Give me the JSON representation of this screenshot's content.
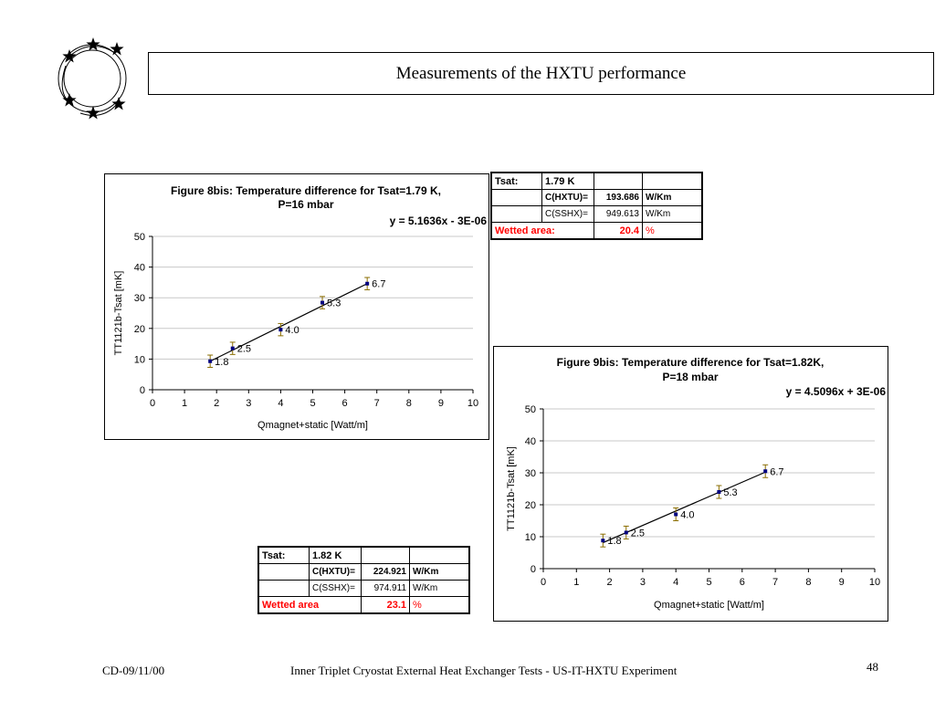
{
  "page": {
    "title": "Measurements of the HXTU performance",
    "footer_left": "CD-09/11/00",
    "footer_center": "Inner Triplet Cryostat External Heat Exchanger Tests - US-IT-HXTU Experiment",
    "page_number": "48"
  },
  "table1": {
    "tsat_label": "Tsat:",
    "tsat_value": "1.79 K",
    "c_hxtu_label": "C(HXTU)=",
    "c_hxtu_value": "193.686",
    "c_hxtu_unit": "W/Km",
    "c_sshx_label": "C(SSHX)=",
    "c_sshx_value": "949.613",
    "c_sshx_unit": "W/Km",
    "wetted_label": "Wetted area:",
    "wetted_value": "20.4",
    "wetted_unit": "%"
  },
  "table2": {
    "tsat_label": "Tsat:",
    "tsat_value": "1.82 K",
    "c_hxtu_label": "C(HXTU)=",
    "c_hxtu_value": "224.921",
    "c_hxtu_unit": "W/Km",
    "c_sshx_label": "C(SSHX)=",
    "c_sshx_value": "974.911",
    "c_sshx_unit": "W/Km",
    "wetted_label": "Wetted area",
    "wetted_value": "23.1",
    "wetted_unit": "%"
  },
  "chart_data": [
    {
      "type": "scatter",
      "title_line1": "Figure 8bis: Temperature difference for Tsat=1.79 K,",
      "title_line2": "P=16 mbar",
      "equation": "y = 5.1636x - 3E-06",
      "xlabel": "Qmagnet+static [Watt/m]",
      "ylabel": "TT1121b-Tsat [mK]",
      "xlim": [
        0,
        10
      ],
      "ylim": [
        0,
        50
      ],
      "xticks": [
        "0",
        "1",
        "2",
        "3",
        "4",
        "5",
        "6",
        "7",
        "8",
        "9",
        "10"
      ],
      "yticks": [
        "0",
        "10",
        "20",
        "30",
        "40",
        "50"
      ],
      "grid": true,
      "x": [
        1.8,
        2.5,
        4.0,
        5.3,
        6.7
      ],
      "y": [
        9.3,
        13.5,
        19.6,
        28.4,
        34.6
      ],
      "error": [
        2,
        2,
        2,
        2,
        2
      ],
      "point_labels": [
        "1.8",
        "2.5",
        "4.0",
        "5.3",
        "6.7"
      ],
      "trendline": {
        "slope": 5.1636,
        "intercept": 0,
        "x_range": [
          1.8,
          6.7
        ]
      },
      "point_color": "#000080"
    },
    {
      "type": "scatter",
      "title_line1": "Figure 9bis: Temperature difference for Tsat=1.82K,",
      "title_line2": "P=18 mbar",
      "equation": "y = 4.5096x + 3E-06",
      "xlabel": "Qmagnet+static [Watt/m]",
      "ylabel": "TT1121b-Tsat [mK]",
      "xlim": [
        0,
        10
      ],
      "ylim": [
        0,
        50
      ],
      "xticks": [
        "0",
        "1",
        "2",
        "3",
        "4",
        "5",
        "6",
        "7",
        "8",
        "9",
        "10"
      ],
      "yticks": [
        "0",
        "10",
        "20",
        "30",
        "40",
        "50"
      ],
      "grid": true,
      "x": [
        1.8,
        2.5,
        4.0,
        5.3,
        6.7
      ],
      "y": [
        8.8,
        11.3,
        17.0,
        24.0,
        30.5
      ],
      "error": [
        2,
        2,
        2,
        2,
        2
      ],
      "point_labels": [
        "1.8",
        "2.5",
        "4.0",
        "5.3",
        "6.7"
      ],
      "trendline": {
        "slope": 4.5096,
        "intercept": 0,
        "x_range": [
          1.8,
          6.7
        ]
      },
      "point_color": "#000080"
    }
  ]
}
